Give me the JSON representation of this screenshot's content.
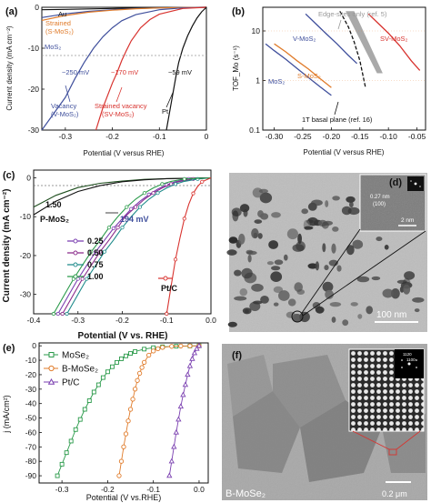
{
  "colors": {
    "orange": "#e07b2a",
    "blue": "#3f4f9c",
    "red": "#d8332f",
    "black": "#111111",
    "green": "#2a9a4a",
    "purple": "#7a3fb0",
    "gray": "#9a9a9a",
    "teal": "#1d8a8a",
    "darkgreen": "#1f4f1f"
  },
  "chart_data": [
    {
      "panel": "(a)",
      "type": "line",
      "xlabel": "Potential (V versus RHE)",
      "ylabel": "Current density (mA cm⁻²)",
      "xlim": [
        -0.35,
        0.0
      ],
      "ylim": [
        -30,
        0
      ],
      "xticks": [
        "-0.3",
        "-0.2",
        "-0.1",
        "0"
      ],
      "yticks": [
        "0",
        "-10",
        "-20",
        "-30"
      ],
      "series": [
        {
          "name": "Au",
          "color": "#111111",
          "x": [
            -0.35,
            -0.3,
            -0.25,
            -0.2,
            -0.15,
            -0.1,
            -0.05,
            0
          ],
          "y": [
            -0.6,
            -0.5,
            -0.4,
            -0.3,
            -0.2,
            -0.1,
            -0.05,
            0
          ]
        },
        {
          "name": "MoS₂",
          "color": "#3f4f9c",
          "x": [
            -0.35,
            -0.3,
            -0.25,
            -0.2,
            -0.15,
            -0.1,
            0
          ],
          "y": [
            -2.5,
            -1.6,
            -1.0,
            -0.6,
            -0.3,
            -0.15,
            0
          ]
        },
        {
          "name": "Strained (S-MoS₂)",
          "color": "#e07b2a",
          "x": [
            -0.35,
            -0.3,
            -0.25,
            -0.2,
            -0.15,
            -0.1,
            0
          ],
          "y": [
            -3.2,
            -2.0,
            -1.2,
            -0.7,
            -0.35,
            -0.15,
            0
          ]
        },
        {
          "name": "Vacancy (V-MoS₂)",
          "color": "#3f4f9c",
          "x": [
            -0.35,
            -0.3,
            -0.28,
            -0.26,
            -0.24,
            -0.22,
            -0.2,
            -0.18,
            -0.15,
            -0.1,
            -0.05,
            0
          ],
          "y": [
            -30,
            -22,
            -17.5,
            -13.5,
            -10,
            -7.2,
            -5,
            -3.3,
            -1.8,
            -0.6,
            -0.15,
            0
          ]
        },
        {
          "name": "Strained vacancy (SV-MoS₂)",
          "color": "#d8332f",
          "x": [
            -0.235,
            -0.22,
            -0.2,
            -0.19,
            -0.18,
            -0.17,
            -0.16,
            -0.14,
            -0.12,
            -0.1,
            -0.05,
            0
          ],
          "y": [
            -30,
            -24.5,
            -18.5,
            -16,
            -13,
            -10.5,
            -8.2,
            -5,
            -3,
            -1.7,
            -0.3,
            0
          ]
        },
        {
          "name": "Pt",
          "color": "#111111",
          "x": [
            -0.085,
            -0.075,
            -0.065,
            -0.059,
            -0.05,
            -0.04,
            -0.03,
            -0.02,
            -0.01,
            0
          ],
          "y": [
            -30,
            -23.5,
            -17,
            -13.5,
            -10,
            -7,
            -4.6,
            -2.6,
            -1.1,
            0
          ]
        }
      ],
      "labels": {
        "au": "Au",
        "mos2": "MoS₂",
        "strained": "Strained",
        "s_mos2": "(S-MoS₂)",
        "vacancy": "Vacancy",
        "v_mos2": "(V-MoS₂)",
        "strained_vacancy": "Strained vacancy",
        "sv_mos2": "(SV-MoS₂)",
        "pt": "Pt",
        "mv250": "~250 mV",
        "mv170": "~170 mV",
        "mv59": "~59 mV"
      }
    },
    {
      "panel": "(b)",
      "type": "line",
      "xlabel": "Potential (V versus RHE)",
      "ylabel": "TOF_Mo (s⁻¹)",
      "yscale": "log",
      "xlim": [
        -0.32,
        -0.035
      ],
      "ylim": [
        0.1,
        30
      ],
      "xticks": [
        "-0.30",
        "-0.25",
        "-0.20",
        "-0.15",
        "-0.10",
        "-0.05"
      ],
      "yticks": [
        "0.1",
        "1",
        "10"
      ],
      "series": [
        {
          "name": "MoS₂",
          "color": "#3f4f9c",
          "x": [
            -0.315,
            -0.3,
            -0.28,
            -0.26,
            -0.24,
            -0.22,
            -0.2
          ],
          "y": [
            5.5,
            4.0,
            2.7,
            1.75,
            1.15,
            0.75,
            0.5
          ]
        },
        {
          "name": "S-MoS₂",
          "color": "#e07b2a",
          "x": [
            -0.3,
            -0.28,
            -0.26,
            -0.24,
            -0.22,
            -0.2
          ],
          "y": [
            5.5,
            3.8,
            2.5,
            1.7,
            1.1,
            0.72
          ]
        },
        {
          "name": "V-MoS₂",
          "color": "#3f4f9c",
          "x": [
            -0.245,
            -0.23,
            -0.21,
            -0.19,
            -0.17,
            -0.155
          ],
          "y": [
            22,
            15,
            9,
            5.5,
            3.2,
            2.2
          ]
        },
        {
          "name": "SV-MoS₂",
          "color": "#d8332f",
          "x": [
            -0.135,
            -0.12,
            -0.1,
            -0.08,
            -0.06,
            -0.045
          ],
          "y": [
            22,
            15,
            9,
            5,
            2.5,
            1.6
          ]
        },
        {
          "name": "1T basal plane (ref. 16)",
          "color": "#111111",
          "dashed": true,
          "x": [
            -0.185,
            -0.17,
            -0.16,
            -0.15,
            -0.14
          ],
          "y": [
            25,
            12,
            6,
            2.5,
            0.7
          ]
        }
      ],
      "band": {
        "name": "Edge-sites only (ref. 5)",
        "x1": [
          -0.175,
          -0.12
        ],
        "x2": [
          -0.16,
          -0.11
        ]
      },
      "labels": {
        "edge": "Edge-sites only (ref. 5)",
        "v_mos2": "V-MoS₂",
        "sv_mos2": "SV-MoS₂",
        "s_mos2": "S-MoS₂",
        "mos2": "MoS₂",
        "basal": "1T basal plane (ref. 16)"
      }
    },
    {
      "panel": "(c)",
      "type": "line",
      "xlabel": "Potential (V vs. RHE)",
      "ylabel": "Current density (mA cm⁻²)",
      "xlim": [
        -0.4,
        0.0
      ],
      "ylim": [
        -35,
        2
      ],
      "xticks": [
        "-0.4",
        "-0.3",
        "-0.2",
        "-0.1",
        "0.0"
      ],
      "yticks": [
        "0",
        "-10",
        "-20",
        "-30"
      ],
      "series": [
        {
          "name": "1.50",
          "color": "#1f4f1f",
          "x": [
            -0.4,
            -0.35,
            -0.3,
            -0.25,
            -0.2,
            -0.15,
            -0.1,
            -0.05,
            0
          ],
          "y": [
            -7.5,
            -4.5,
            -2.5,
            -1.4,
            -0.8,
            -0.4,
            -0.2,
            -0.1,
            0
          ]
        },
        {
          "name": "P-MoS₂",
          "color": "#111111",
          "x": [
            -0.4,
            -0.35,
            -0.3,
            -0.25,
            -0.2,
            -0.15,
            -0.1,
            0
          ],
          "y": [
            -9.5,
            -6,
            -3.5,
            -2,
            -1,
            -0.5,
            -0.2,
            0
          ]
        },
        {
          "name": "0.25",
          "color": "#7a3fb0",
          "x": [
            -0.345,
            -0.32,
            -0.3,
            -0.28,
            -0.26,
            -0.24,
            -0.22,
            -0.2,
            -0.18,
            -0.16,
            -0.14,
            -0.12,
            -0.1,
            -0.08,
            -0.05,
            0
          ],
          "y": [
            -35,
            -30,
            -26,
            -22.5,
            -19,
            -16,
            -13,
            -10.5,
            -8,
            -6,
            -4.3,
            -2.9,
            -1.8,
            -1,
            -0.3,
            0
          ]
        },
        {
          "name": "0.50",
          "color": "#8a2a8a",
          "x": [
            -0.335,
            -0.31,
            -0.29,
            -0.27,
            -0.25,
            -0.23,
            -0.21,
            -0.194,
            -0.17,
            -0.15,
            -0.13,
            -0.11,
            -0.09,
            -0.07,
            -0.04,
            0
          ],
          "y": [
            -35,
            -30,
            -26,
            -22.5,
            -19,
            -16,
            -12.8,
            -10,
            -7.5,
            -5.5,
            -3.9,
            -2.6,
            -1.6,
            -0.9,
            -0.3,
            0
          ]
        },
        {
          "name": "0.75",
          "color": "#1d8a8a",
          "x": [
            -0.325,
            -0.3,
            -0.28,
            -0.26,
            -0.24,
            -0.22,
            -0.2,
            -0.18,
            -0.16,
            -0.14,
            -0.12,
            -0.1,
            -0.08,
            -0.06,
            -0.03,
            0
          ],
          "y": [
            -35,
            -30,
            -26,
            -22.5,
            -19,
            -16,
            -12.8,
            -10,
            -7.5,
            -5.5,
            -3.9,
            -2.6,
            -1.6,
            -0.9,
            -0.3,
            0
          ]
        },
        {
          "name": "1.00",
          "color": "#2a9a4a",
          "x": [
            -0.355,
            -0.33,
            -0.31,
            -0.29,
            -0.27,
            -0.25,
            -0.23,
            -0.21,
            -0.19,
            -0.17,
            -0.15,
            -0.13,
            -0.11,
            -0.09,
            -0.06,
            0
          ],
          "y": [
            -35,
            -30,
            -26,
            -22.5,
            -19,
            -16,
            -12.8,
            -10,
            -7.5,
            -5.5,
            -3.9,
            -2.6,
            -1.6,
            -0.9,
            -0.3,
            0
          ]
        },
        {
          "name": "Pt/C",
          "color": "#d8332f",
          "x": [
            -0.1,
            -0.09,
            -0.08,
            -0.07,
            -0.06,
            -0.05,
            -0.04,
            -0.03,
            -0.02,
            0
          ],
          "y": [
            -35,
            -28,
            -21,
            -15.5,
            -10.5,
            -6.8,
            -4,
            -2.2,
            -1,
            0
          ]
        }
      ],
      "labels": {
        "mv194": "194 mV",
        "p_mos2": "P-MoS₂",
        "v150": "1.50"
      }
    },
    {
      "panel": "(e)",
      "type": "line",
      "xlabel": "Potential (V vs.RHE)",
      "ylabel": "j (mA/cm²)",
      "xlim": [
        -0.35,
        0.02
      ],
      "ylim": [
        -95,
        2
      ],
      "xticks": [
        "-0.3",
        "-0.2",
        "-0.1",
        "0.0"
      ],
      "yticks": [
        "0",
        "-10",
        "-20",
        "-30",
        "-40",
        "-50",
        "-60",
        "-70",
        "-80",
        "-90"
      ],
      "series": [
        {
          "name": "MoSe₂",
          "color": "#2a9a4a",
          "marker": "square",
          "x": [
            -0.31,
            -0.3,
            -0.29,
            -0.28,
            -0.27,
            -0.26,
            -0.25,
            -0.24,
            -0.23,
            -0.22,
            -0.21,
            -0.2,
            -0.19,
            -0.18,
            -0.17,
            -0.16,
            -0.15,
            -0.14,
            -0.12,
            -0.1,
            -0.08,
            -0.05,
            -0.02,
            0.0
          ],
          "y": [
            -90,
            -82,
            -74,
            -66,
            -58,
            -51,
            -44,
            -38,
            -32,
            -27,
            -22,
            -18,
            -14.5,
            -11.5,
            -9,
            -7,
            -5.3,
            -4,
            -2.3,
            -1.3,
            -0.7,
            -0.3,
            -0.1,
            0
          ]
        },
        {
          "name": "B-MoSe₂",
          "color": "#e07b2a",
          "marker": "circle",
          "x": [
            -0.175,
            -0.17,
            -0.165,
            -0.16,
            -0.155,
            -0.15,
            -0.145,
            -0.14,
            -0.135,
            -0.13,
            -0.125,
            -0.12,
            -0.11,
            -0.1,
            -0.09,
            -0.08,
            -0.06,
            -0.04,
            -0.02,
            0.0
          ],
          "y": [
            -90,
            -80,
            -70,
            -61,
            -52,
            -44,
            -37,
            -30,
            -24,
            -19,
            -15,
            -11.5,
            -6.5,
            -3.6,
            -2,
            -1.1,
            -0.4,
            -0.15,
            -0.05,
            0
          ]
        },
        {
          "name": "Pt/C",
          "color": "#7a3fb0",
          "marker": "triangle",
          "x": [
            -0.065,
            -0.06,
            -0.055,
            -0.05,
            -0.045,
            -0.04,
            -0.035,
            -0.03,
            -0.025,
            -0.02,
            -0.015,
            -0.01,
            -0.005,
            0.0
          ],
          "y": [
            -90,
            -80,
            -70,
            -60,
            -51,
            -42,
            -34,
            -27,
            -20,
            -14,
            -9,
            -5,
            -2,
            0
          ]
        }
      ]
    }
  ],
  "panels": {
    "a": "(a)",
    "b": "(b)",
    "c": "(c)",
    "d": "(d)",
    "e": "(e)",
    "f": "(f)"
  },
  "images": {
    "d": {
      "scale_main": "100 nm",
      "scale_inset": "2 nm",
      "lattice": "0.27 nm",
      "plane": "(100)"
    },
    "f": {
      "scale_main": "0.2 μm",
      "caption": "B-MoSe₂",
      "fft1": "1120",
      "fft2": "1100"
    }
  }
}
